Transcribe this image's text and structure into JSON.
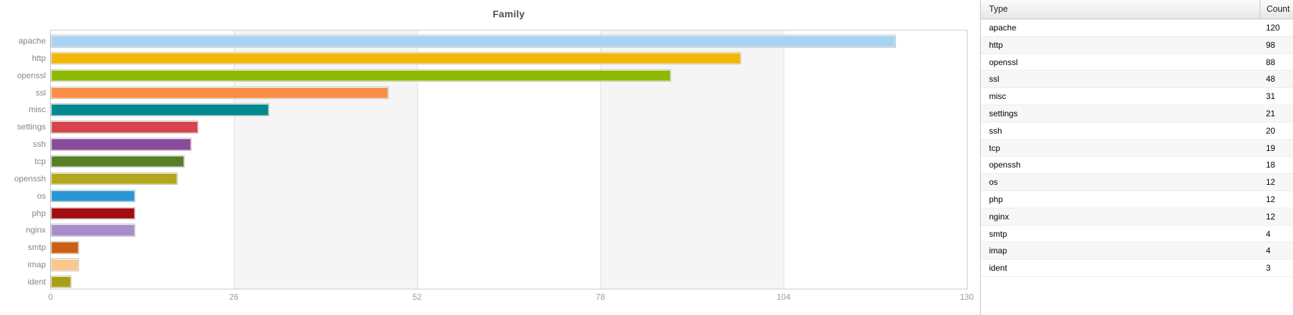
{
  "chart_data": {
    "type": "bar",
    "orientation": "horizontal",
    "title": "Family",
    "categories": [
      "apache",
      "http",
      "openssl",
      "ssl",
      "misc",
      "settings",
      "ssh",
      "tcp",
      "openssh",
      "os",
      "php",
      "nginx",
      "smtp",
      "imap",
      "ident"
    ],
    "values": [
      120,
      98,
      88,
      48,
      31,
      21,
      20,
      19,
      18,
      12,
      12,
      12,
      4,
      4,
      3
    ],
    "colors": [
      "#a9d3f2",
      "#f2b705",
      "#8cba00",
      "#fb8c44",
      "#00898e",
      "#d6454e",
      "#8a4b9c",
      "#567f28",
      "#b3a71a",
      "#2897d6",
      "#a30d12",
      "#a98dc8",
      "#cb6015",
      "#fac78d",
      "#a7a013"
    ],
    "xlabel": "",
    "ylabel": "",
    "xlim": [
      0,
      130
    ],
    "xticks": [
      0,
      26,
      52,
      78,
      104,
      130
    ],
    "shaded_bands": [
      [
        26,
        52
      ],
      [
        78,
        104
      ]
    ],
    "grid": "vertical",
    "legend": "none"
  },
  "table": {
    "columns": {
      "type": "Type",
      "count": "Count"
    },
    "rows": [
      {
        "type": "apache",
        "count": "120"
      },
      {
        "type": "http",
        "count": "98"
      },
      {
        "type": "openssl",
        "count": "88"
      },
      {
        "type": "ssl",
        "count": "48"
      },
      {
        "type": "misc",
        "count": "31"
      },
      {
        "type": "settings",
        "count": "21"
      },
      {
        "type": "ssh",
        "count": "20"
      },
      {
        "type": "tcp",
        "count": "19"
      },
      {
        "type": "openssh",
        "count": "18"
      },
      {
        "type": "os",
        "count": "12"
      },
      {
        "type": "php",
        "count": "12"
      },
      {
        "type": "nginx",
        "count": "12"
      },
      {
        "type": "smtp",
        "count": "4"
      },
      {
        "type": "imap",
        "count": "4"
      },
      {
        "type": "ident",
        "count": "3"
      }
    ]
  }
}
